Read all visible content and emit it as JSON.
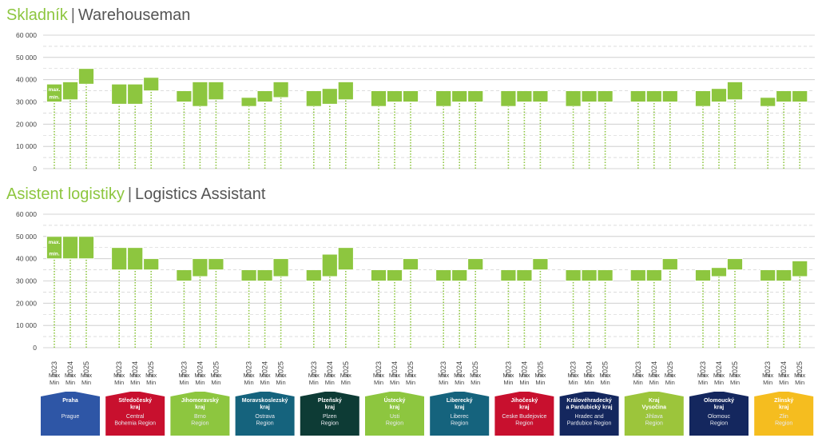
{
  "colors": {
    "bar": "#8dc63f",
    "bar_stroke": "#ffffff",
    "grid": "#c8c8c8",
    "stem": "#8dc63f",
    "axis_text": "#444444",
    "title_green": "#8dc63f",
    "title_grey": "#555555"
  },
  "years": [
    "2023",
    "2024",
    "2025"
  ],
  "sublabel_max": "Max",
  "sublabel_min": "Min",
  "chart_data": [
    {
      "type": "bar",
      "floating": true,
      "title_cz": "Skladník",
      "title_sep": "|",
      "title_en": "Warehouseman",
      "ylim": [
        0,
        60000
      ],
      "yticks": [
        "0",
        "10 000",
        "20 000",
        "30 000",
        "40 000",
        "50 000",
        "60 000"
      ],
      "yticks_values": [
        0,
        10000,
        20000,
        30000,
        40000,
        50000,
        60000
      ],
      "legend_max": "max.",
      "legend_min": "min.",
      "series": [
        {
          "region": "Praha",
          "min": [
            30000,
            31000,
            38000
          ],
          "max": [
            38000,
            39000,
            45000
          ]
        },
        {
          "region": "Středočeský kraj",
          "min": [
            29000,
            29000,
            35000
          ],
          "max": [
            38000,
            38000,
            41000
          ]
        },
        {
          "region": "Jihomoravský kraj",
          "min": [
            30000,
            28000,
            31000
          ],
          "max": [
            35000,
            39000,
            39000
          ]
        },
        {
          "region": "Moravskoslezský kraj",
          "min": [
            28000,
            30000,
            32000
          ],
          "max": [
            32000,
            35000,
            39000
          ]
        },
        {
          "region": "Plzeňský kraj",
          "min": [
            28000,
            29000,
            31000
          ],
          "max": [
            35000,
            36000,
            39000
          ]
        },
        {
          "region": "Ústecký kraj",
          "min": [
            28000,
            30000,
            30000
          ],
          "max": [
            35000,
            35000,
            35000
          ]
        },
        {
          "region": "Liberecký kraj",
          "min": [
            28000,
            30000,
            30000
          ],
          "max": [
            35000,
            35000,
            35000
          ]
        },
        {
          "region": "Jihočeský kraj",
          "min": [
            28000,
            30000,
            30000
          ],
          "max": [
            35000,
            35000,
            35000
          ]
        },
        {
          "region": "Královéhradecký a Pardubický kraj",
          "min": [
            28000,
            30000,
            30000
          ],
          "max": [
            35000,
            35000,
            35000
          ]
        },
        {
          "region": "Kraj Vysočina",
          "min": [
            30000,
            30000,
            30000
          ],
          "max": [
            35000,
            35000,
            35000
          ]
        },
        {
          "region": "Olomoucký kraj",
          "min": [
            28000,
            30000,
            31000
          ],
          "max": [
            35000,
            36000,
            39000
          ]
        },
        {
          "region": "Zlínský kraj",
          "min": [
            28000,
            30000,
            30000
          ],
          "max": [
            32000,
            35000,
            35000
          ]
        }
      ]
    },
    {
      "type": "bar",
      "floating": true,
      "title_cz": "Asistent logistiky",
      "title_sep": "|",
      "title_en": "Logistics Assistant",
      "ylim": [
        0,
        60000
      ],
      "yticks": [
        "0",
        "10 000",
        "20 000",
        "30 000",
        "40 000",
        "50 000",
        "60 000"
      ],
      "yticks_values": [
        0,
        10000,
        20000,
        30000,
        40000,
        50000,
        60000
      ],
      "legend_max": "max.",
      "legend_min": "min.",
      "series": [
        {
          "region": "Praha",
          "min": [
            40000,
            40000,
            40000
          ],
          "max": [
            50000,
            50000,
            50000
          ]
        },
        {
          "region": "Středočeský kraj",
          "min": [
            35000,
            35000,
            35000
          ],
          "max": [
            45000,
            45000,
            40000
          ]
        },
        {
          "region": "Jihomoravský kraj",
          "min": [
            30000,
            32000,
            35000
          ],
          "max": [
            35000,
            40000,
            40000
          ]
        },
        {
          "region": "Moravskoslezský kraj",
          "min": [
            30000,
            30000,
            32000
          ],
          "max": [
            35000,
            35000,
            40000
          ]
        },
        {
          "region": "Plzeňský kraj",
          "min": [
            30000,
            32000,
            35000
          ],
          "max": [
            35000,
            42000,
            45000
          ]
        },
        {
          "region": "Ústecký kraj",
          "min": [
            30000,
            30000,
            35000
          ],
          "max": [
            35000,
            35000,
            40000
          ]
        },
        {
          "region": "Liberecký kraj",
          "min": [
            30000,
            30000,
            35000
          ],
          "max": [
            35000,
            35000,
            40000
          ]
        },
        {
          "region": "Jihočeský kraj",
          "min": [
            30000,
            30000,
            35000
          ],
          "max": [
            35000,
            35000,
            40000
          ]
        },
        {
          "region": "Královéhradecký a Pardubický kraj",
          "min": [
            30000,
            30000,
            30000
          ],
          "max": [
            35000,
            35000,
            35000
          ]
        },
        {
          "region": "Kraj Vysočina",
          "min": [
            30000,
            30000,
            35000
          ],
          "max": [
            35000,
            35000,
            40000
          ]
        },
        {
          "region": "Olomoucký kraj",
          "min": [
            30000,
            32000,
            35000
          ],
          "max": [
            35000,
            36000,
            40000
          ]
        },
        {
          "region": "Zlínský kraj",
          "min": [
            30000,
            30000,
            32000
          ],
          "max": [
            35000,
            35000,
            39000
          ]
        }
      ]
    }
  ],
  "regions": [
    {
      "cz": [
        "Praha"
      ],
      "en": [
        "Prague"
      ],
      "color": "#2e56a6"
    },
    {
      "cz": [
        "Středočeský",
        "kraj"
      ],
      "en": [
        "Central",
        "Bohemia Region"
      ],
      "color": "#c8102e"
    },
    {
      "cz": [
        "Jihomoravský",
        "kraj"
      ],
      "en": [
        "Brno",
        "Region"
      ],
      "color": "#8dc63f"
    },
    {
      "cz": [
        "Moravskoslezský",
        "kraj"
      ],
      "en": [
        "Ostrava",
        "Region"
      ],
      "color": "#15637d"
    },
    {
      "cz": [
        "Plzeňský",
        "kraj"
      ],
      "en": [
        "Plzen",
        "Region"
      ],
      "color": "#0d3b35"
    },
    {
      "cz": [
        "Ústecký",
        "kraj"
      ],
      "en": [
        "Usti",
        "Region"
      ],
      "color": "#8dc63f"
    },
    {
      "cz": [
        "Liberecký",
        "kraj"
      ],
      "en": [
        "Liberec",
        "Region"
      ],
      "color": "#15637d"
    },
    {
      "cz": [
        "Jihočeský",
        "kraj"
      ],
      "en": [
        "Ceske Budejovice",
        "Region"
      ],
      "color": "#c8102e"
    },
    {
      "cz": [
        "Královéhradecký",
        "a Pardubický kraj"
      ],
      "en": [
        "Hradec and",
        "Pardubice Region"
      ],
      "color": "#14275e"
    },
    {
      "cz": [
        "Kraj",
        "Vysočina"
      ],
      "en": [
        "Jihlava",
        "Region"
      ],
      "color": "#9cc53b"
    },
    {
      "cz": [
        "Olomoucký",
        "kraj"
      ],
      "en": [
        "Olomouc",
        "Region"
      ],
      "color": "#14275e"
    },
    {
      "cz": [
        "Zlínský",
        "kraj"
      ],
      "en": [
        "Zlin",
        "Region"
      ],
      "color": "#f5bd1f"
    }
  ]
}
